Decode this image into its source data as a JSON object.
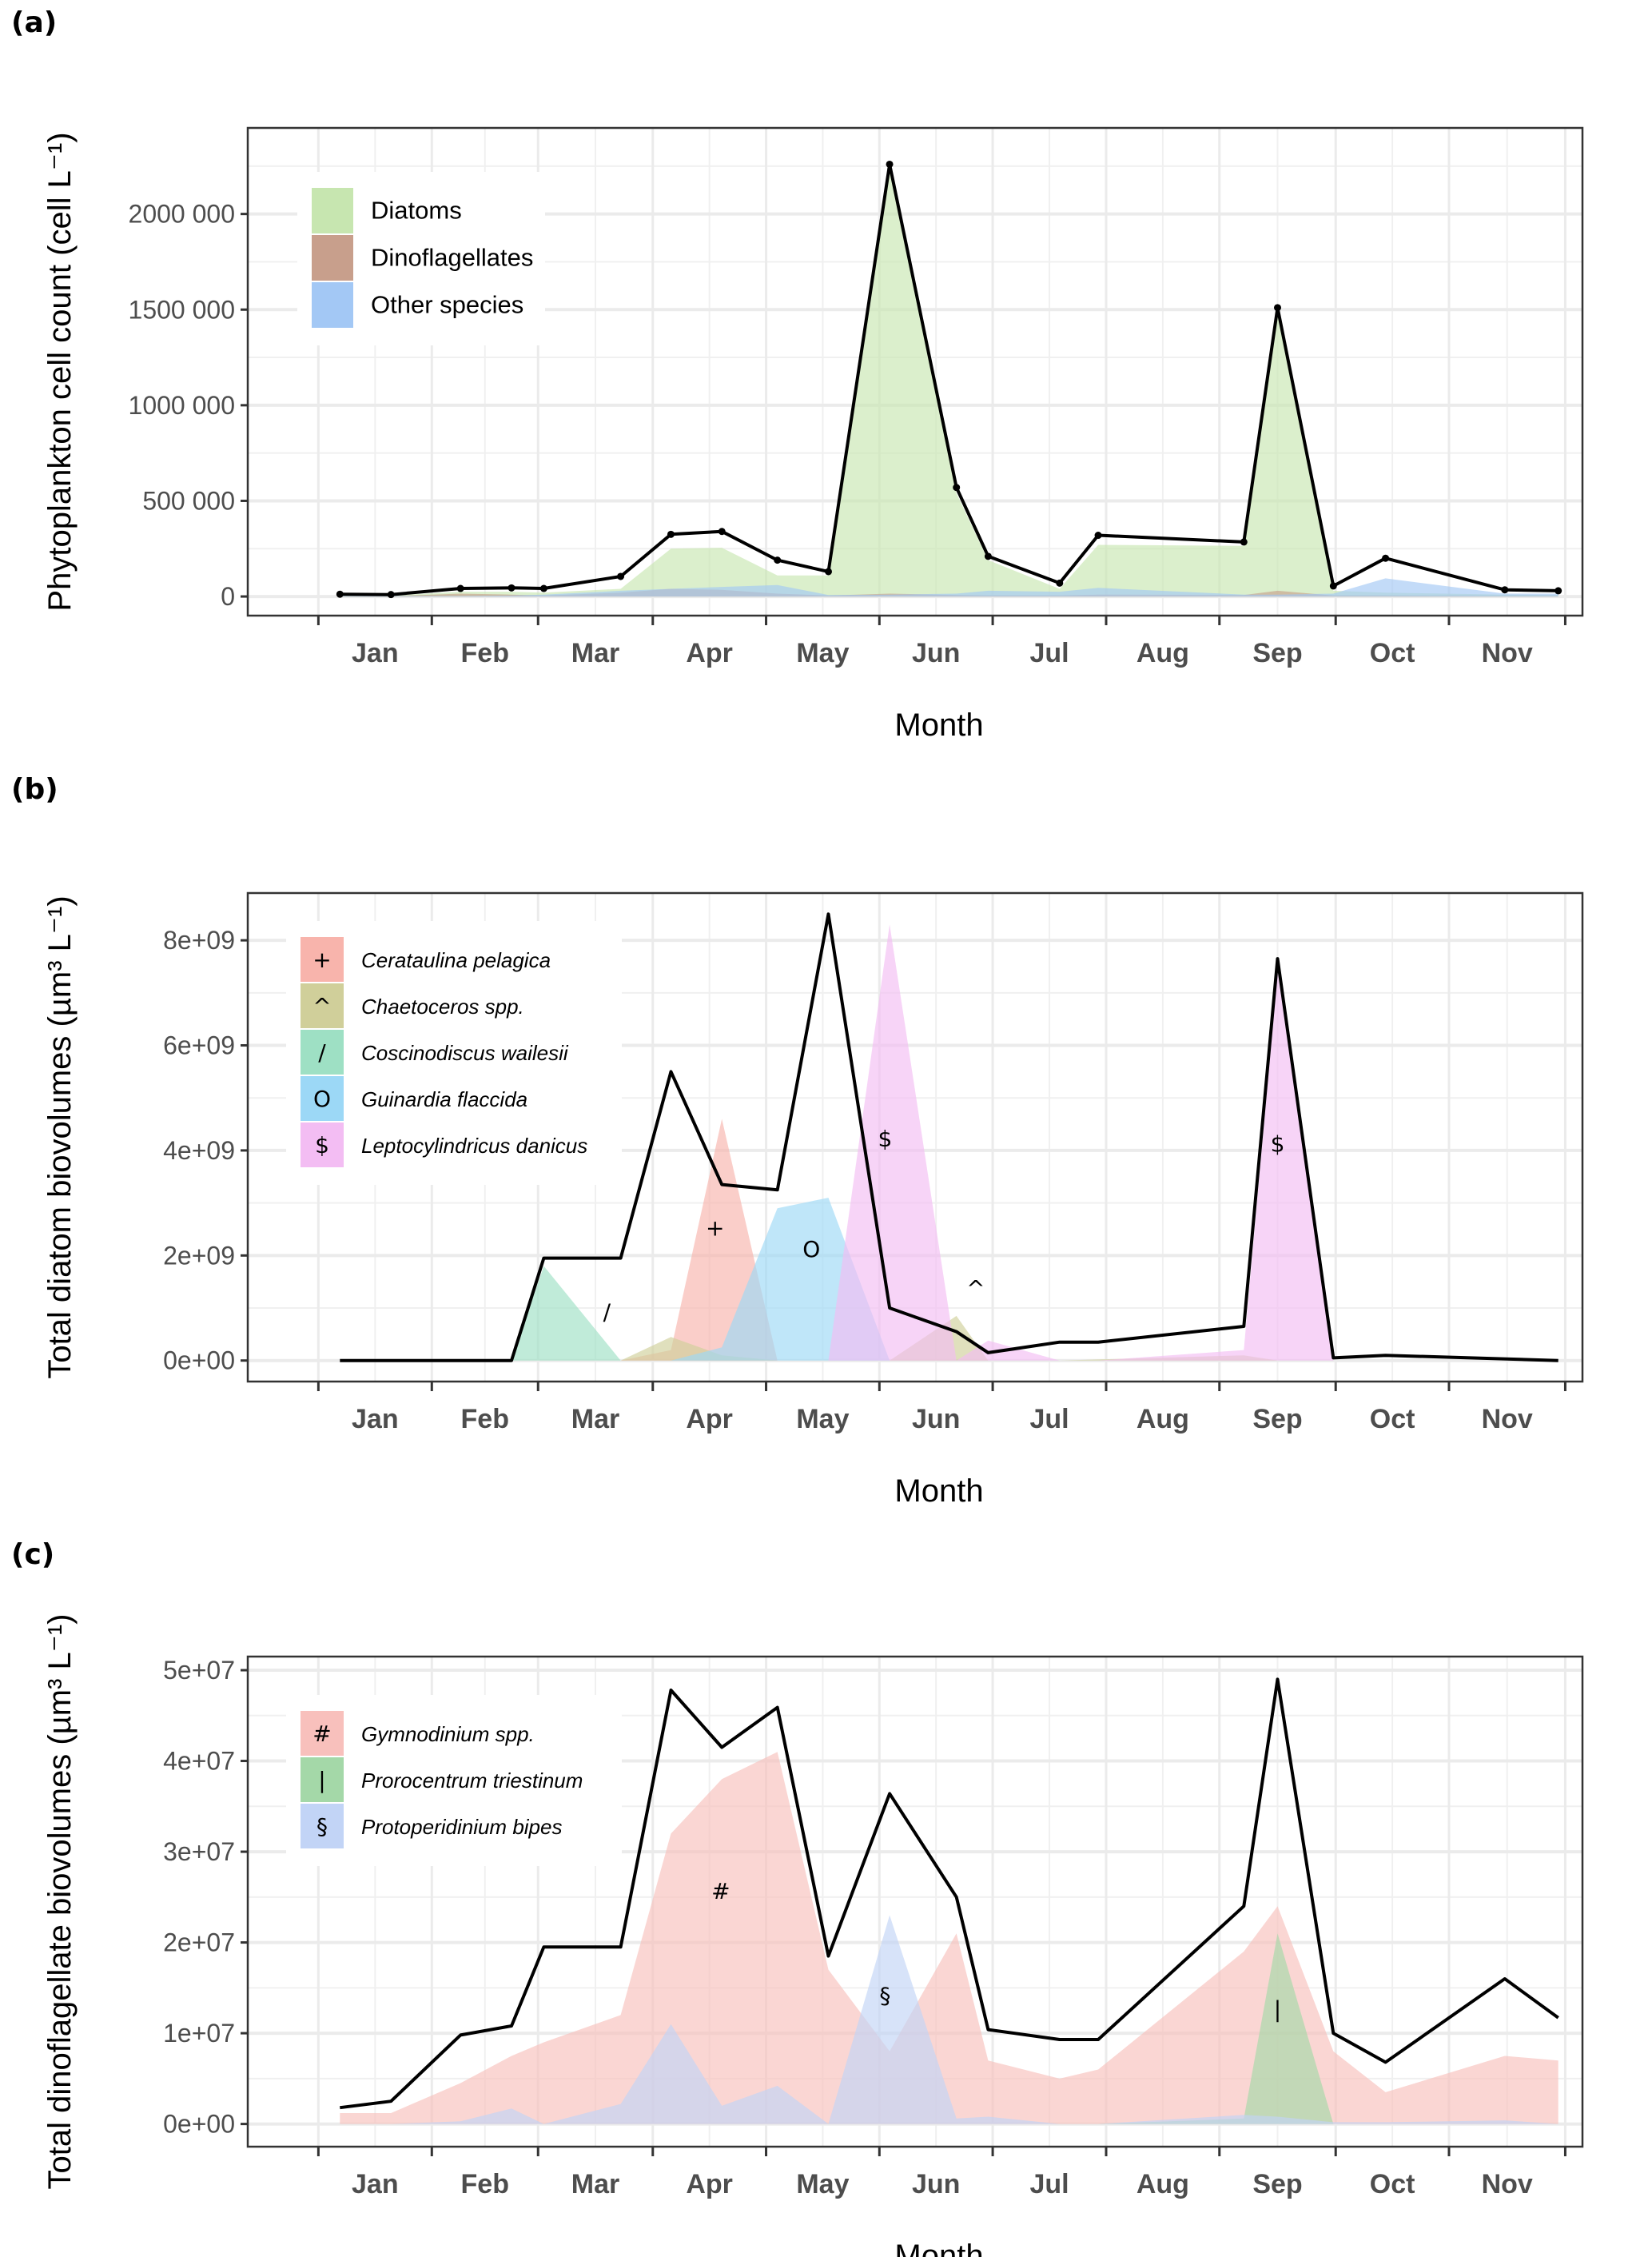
{
  "months": [
    "Jan",
    "Feb",
    "Mar",
    "Apr",
    "May",
    "Jun",
    "Jul",
    "Aug",
    "Sep",
    "Oct",
    "Nov"
  ],
  "chart_data": [
    {
      "panel_label": "(a)",
      "type": "area",
      "title": "",
      "xlabel": "Month",
      "ylabel": "Phytoplankton cell count (cell L⁻¹)",
      "ylim": [
        -100000,
        2450000
      ],
      "yticks": [
        0,
        500000,
        1000000,
        1500000,
        2000000
      ],
      "ytick_labels": [
        "0",
        "500 000",
        "1000 000",
        "1500 000",
        "2000 000"
      ],
      "x_units": "fractional month index (0 = start of Jan, 11 = end of Nov)",
      "x": [
        0.19,
        0.64,
        1.27,
        1.75,
        2.05,
        2.72,
        3.16,
        3.61,
        4.1,
        4.55,
        5.09,
        5.68,
        5.96,
        6.59,
        6.93,
        8.21,
        8.5,
        8.98,
        9.44,
        10.48,
        10.94
      ],
      "legend": "top-left",
      "series": [
        {
          "name": "Diatoms",
          "color": "#c7e6b0",
          "values": [
            5000,
            5000,
            25000,
            25000,
            20000,
            40000,
            250000,
            255000,
            110000,
            110000,
            2230000,
            540000,
            190000,
            40000,
            270000,
            265000,
            1490000,
            30000,
            20000,
            10000,
            8000
          ]
        },
        {
          "name": "Dinoflagellates",
          "color": "#c89f8c",
          "values": [
            2000,
            2000,
            15000,
            10000,
            5000,
            20000,
            40000,
            35000,
            15000,
            5000,
            15000,
            8000,
            5000,
            5000,
            10000,
            8000,
            30000,
            5000,
            5000,
            3000,
            3000
          ]
        },
        {
          "name": "Other species",
          "color": "#a3c8f5",
          "values": [
            3000,
            3000,
            3000,
            5000,
            10000,
            30000,
            40000,
            50000,
            60000,
            8000,
            10000,
            15000,
            30000,
            25000,
            45000,
            10000,
            10000,
            15000,
            95000,
            15000,
            15000
          ]
        }
      ],
      "total_line": {
        "name": "Total",
        "color": "#000000",
        "values": [
          12000,
          10000,
          42000,
          45000,
          42000,
          105000,
          325000,
          340000,
          190000,
          130000,
          2260000,
          570000,
          210000,
          70000,
          320000,
          285000,
          1510000,
          55000,
          200000,
          35000,
          30000
        ],
        "markers": true
      }
    },
    {
      "panel_label": "(b)",
      "type": "area",
      "title": "",
      "xlabel": "Month",
      "ylabel": "Total diatom biovolumes (µm³ L⁻¹)",
      "ylim": [
        -400000000,
        8900000000
      ],
      "yticks": [
        0,
        2000000000,
        4000000000,
        6000000000,
        8000000000
      ],
      "ytick_labels": [
        "0e+00",
        "2e+09",
        "4e+09",
        "6e+09",
        "8e+09"
      ],
      "x_units": "fractional month index (0 = start of Jan, 11 = end of Nov)",
      "x": [
        0.19,
        1.75,
        2.05,
        2.72,
        3.16,
        3.61,
        4.1,
        4.55,
        5.09,
        5.68,
        5.96,
        6.59,
        6.93,
        8.21,
        8.5,
        8.98,
        9.44,
        10.94
      ],
      "legend": "top-left",
      "series": [
        {
          "name": "Cerataulina pelagica",
          "symbol": "+",
          "color": "#f8b4ac",
          "values": [
            0,
            0,
            0,
            0,
            200000000,
            4600000000,
            0,
            0,
            0,
            0,
            0,
            0,
            0,
            0,
            0,
            0,
            0,
            0
          ],
          "label_at": [
            3.55,
            2500000000
          ]
        },
        {
          "name": "Chaetoceros spp.",
          "symbol": "^",
          "color": "#d0cf9a",
          "values": [
            0,
            0,
            0,
            0,
            450000000,
            100000000,
            0,
            0,
            0,
            850000000,
            0,
            0,
            20000000,
            100000000,
            0,
            0,
            0,
            0
          ],
          "label_at": [
            5.85,
            1350000000
          ]
        },
        {
          "name": "Coscinodiscus wailesii",
          "symbol": "/",
          "color": "#9ee0c4",
          "values": [
            0,
            0,
            1800000000,
            0,
            0,
            0,
            0,
            0,
            0,
            0,
            0,
            0,
            0,
            0,
            0,
            0,
            0,
            0
          ],
          "label_at": [
            2.6,
            900000000
          ]
        },
        {
          "name": "Guinardia flaccida",
          "symbol": "O",
          "color": "#9cd8f6",
          "values": [
            0,
            0,
            0,
            0,
            0,
            250000000,
            2900000000,
            3100000000,
            0,
            0,
            0,
            0,
            0,
            0,
            0,
            0,
            0,
            0
          ],
          "label_at": [
            4.4,
            2100000000
          ]
        },
        {
          "name": "Leptocylindricus danicus",
          "symbol": "$",
          "color": "#f3bdf3",
          "values": [
            0,
            0,
            0,
            0,
            0,
            0,
            0,
            0,
            8300000000,
            0,
            380000000,
            0,
            0,
            200000000,
            7400000000,
            0,
            0,
            0
          ],
          "label_at": [
            5.05,
            4200000000
          ],
          "label_at_2": [
            8.5,
            4100000000
          ]
        }
      ],
      "total_line": {
        "name": "Total",
        "color": "#000000",
        "values": [
          0,
          0,
          1950000000,
          1950000000,
          5500000000,
          3350000000,
          3250000000,
          8500000000,
          1000000000,
          550000000,
          150000000,
          350000000,
          350000000,
          650000000,
          7650000000,
          50000000,
          100000000,
          0
        ],
        "markers": false
      }
    },
    {
      "panel_label": "(c)",
      "type": "area",
      "title": "",
      "xlabel": "Month",
      "ylabel": "Total dinoflagellate biovolumes (µm³ L⁻¹)",
      "ylim": [
        -2500000,
        51500000
      ],
      "yticks": [
        0,
        10000000,
        20000000,
        30000000,
        40000000,
        50000000
      ],
      "ytick_labels": [
        "0e+00",
        "1e+07",
        "2e+07",
        "3e+07",
        "4e+07",
        "5e+07"
      ],
      "x_units": "fractional month index (0 = start of Jan, 11 = end of Nov)",
      "x": [
        0.19,
        0.64,
        1.27,
        1.75,
        2.05,
        2.72,
        3.16,
        3.61,
        4.1,
        4.55,
        5.09,
        5.68,
        5.96,
        6.59,
        6.93,
        8.21,
        8.5,
        8.98,
        9.44,
        10.48,
        10.94
      ],
      "legend": "top-left",
      "series": [
        {
          "name": "Gymnodinium spp.",
          "symbol": "#",
          "color": "#f8c0bc",
          "values": [
            1200000,
            1200000,
            4500000,
            7500000,
            9000000,
            12000000,
            32000000,
            38000000,
            41000000,
            17000000,
            8000000,
            21000000,
            7000000,
            5000000,
            6000000,
            19000000,
            24000000,
            8000000,
            3500000,
            7500000,
            7000000
          ],
          "label_at": [
            3.6,
            25500000
          ]
        },
        {
          "name": "Prorocentrum triestinum",
          "symbol": "|",
          "color": "#a4d8a8",
          "values": [
            0,
            0,
            0,
            0,
            0,
            0,
            0,
            0,
            0,
            0,
            0,
            0,
            0,
            0,
            0,
            600000,
            21000000,
            0,
            0,
            0,
            0
          ],
          "label_at": [
            8.5,
            12500000
          ]
        },
        {
          "name": "Protoperidinium bipes",
          "symbol": "§",
          "color": "#c2d4f6",
          "values": [
            0,
            0,
            300000,
            1700000,
            0,
            2200000,
            11000000,
            2000000,
            4200000,
            0,
            23000000,
            600000,
            800000,
            0,
            0,
            1000000,
            800000,
            200000,
            200000,
            400000,
            0
          ],
          "label_at": [
            5.05,
            14000000
          ]
        }
      ],
      "total_line": {
        "name": "Total",
        "color": "#000000",
        "values": [
          1800000,
          2500000,
          9800000,
          10800000,
          19500000,
          19500000,
          47800000,
          41500000,
          45900000,
          18500000,
          36400000,
          25000000,
          10400000,
          9300000,
          9300000,
          24000000,
          49000000,
          10000000,
          6800000,
          16000000,
          11700000
        ],
        "markers": false
      }
    }
  ]
}
